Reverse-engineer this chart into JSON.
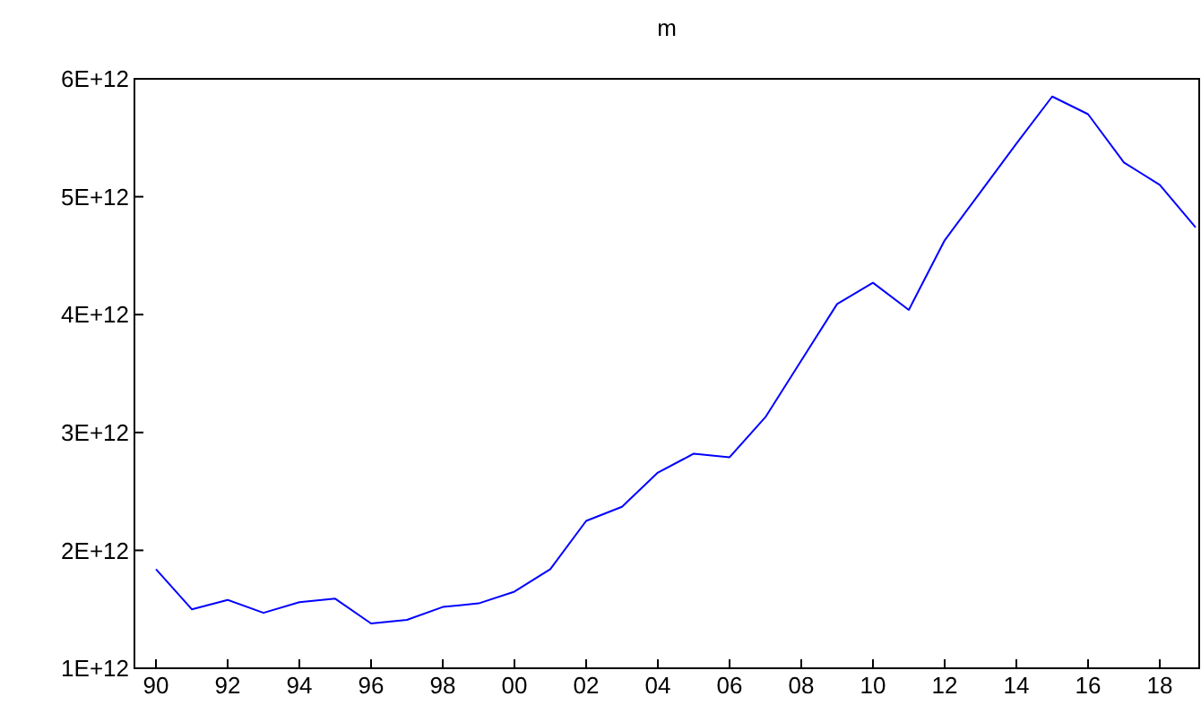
{
  "chart_data": {
    "type": "line",
    "title": "m",
    "x": [
      1990,
      1991,
      1992,
      1993,
      1994,
      1995,
      1996,
      1997,
      1998,
      1999,
      2000,
      2001,
      2002,
      2003,
      2004,
      2005,
      2006,
      2007,
      2008,
      2009,
      2010,
      2011,
      2012,
      2013,
      2014,
      2015,
      2016,
      2017,
      2018,
      2019
    ],
    "series": [
      {
        "color": "#0000ff",
        "values": [
          1840000000000.0,
          1500000000000.0,
          1580000000000.0,
          1470000000000.0,
          1560000000000.0,
          1590000000000.0,
          1380000000000.0,
          1410000000000.0,
          1520000000000.0,
          1550000000000.0,
          1650000000000.0,
          1840000000000.0,
          2250000000000.0,
          2370000000000.0,
          2660000000000.0,
          2820000000000.0,
          2790000000000.0,
          3130000000000.0,
          3610000000000.0,
          4090000000000.0,
          4270000000000.0,
          4040000000000.0,
          4630000000000.0,
          5040000000000.0,
          5450000000000.0,
          5850000000000.0,
          5700000000000.0,
          5290000000000.0,
          5100000000000.0,
          4740000000000.0
        ]
      }
    ],
    "xlim": [
      1989.4,
      2019.1
    ],
    "xticks": [
      {
        "value": 1990,
        "label": "90"
      },
      {
        "value": 1992,
        "label": "92"
      },
      {
        "value": 1994,
        "label": "94"
      },
      {
        "value": 1996,
        "label": "96"
      },
      {
        "value": 1998,
        "label": "98"
      },
      {
        "value": 2000,
        "label": "00"
      },
      {
        "value": 2002,
        "label": "02"
      },
      {
        "value": 2004,
        "label": "04"
      },
      {
        "value": 2006,
        "label": "06"
      },
      {
        "value": 2008,
        "label": "08"
      },
      {
        "value": 2010,
        "label": "10"
      },
      {
        "value": 2012,
        "label": "12"
      },
      {
        "value": 2014,
        "label": "14"
      },
      {
        "value": 2016,
        "label": "16"
      },
      {
        "value": 2018,
        "label": "18"
      }
    ],
    "ylim": [
      1000000000000.0,
      6000000000000.0
    ],
    "yticks": [
      {
        "value": 1000000000000.0,
        "label": "1E+12"
      },
      {
        "value": 2000000000000.0,
        "label": "2E+12"
      },
      {
        "value": 3000000000000.0,
        "label": "3E+12"
      },
      {
        "value": 4000000000000.0,
        "label": "4E+12"
      },
      {
        "value": 5000000000000.0,
        "label": "5E+12"
      },
      {
        "value": 6000000000000.0,
        "label": "6E+12"
      }
    ],
    "grid": false
  }
}
